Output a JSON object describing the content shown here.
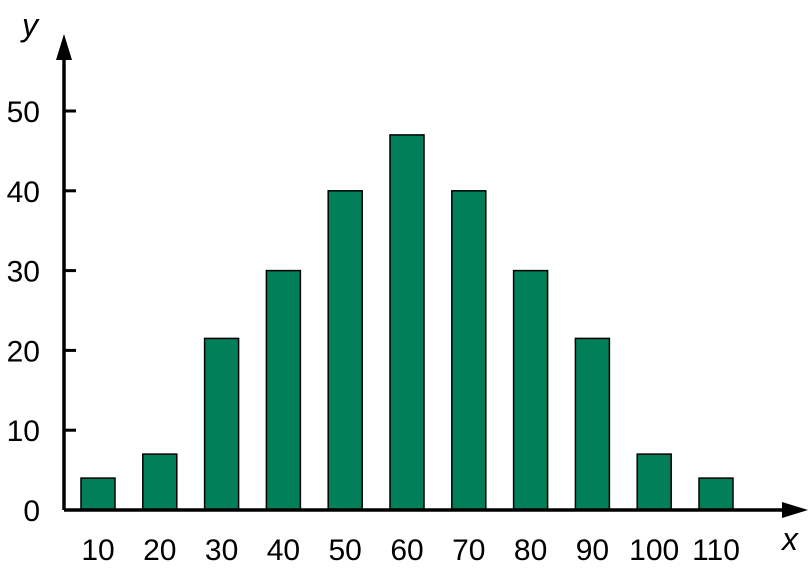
{
  "chart_data": {
    "type": "bar",
    "categories": [
      "10",
      "20",
      "30",
      "40",
      "50",
      "60",
      "70",
      "80",
      "90",
      "100",
      "110"
    ],
    "values": [
      4,
      7,
      21.5,
      30,
      40,
      47,
      40,
      30,
      21.5,
      7,
      4
    ],
    "title": "",
    "xlabel": "x",
    "ylabel": "y",
    "ylim": [
      0,
      50
    ],
    "y_ticks": [
      "0",
      "10",
      "20",
      "30",
      "40",
      "50"
    ],
    "bar_color": "#007f58",
    "grid": false
  }
}
